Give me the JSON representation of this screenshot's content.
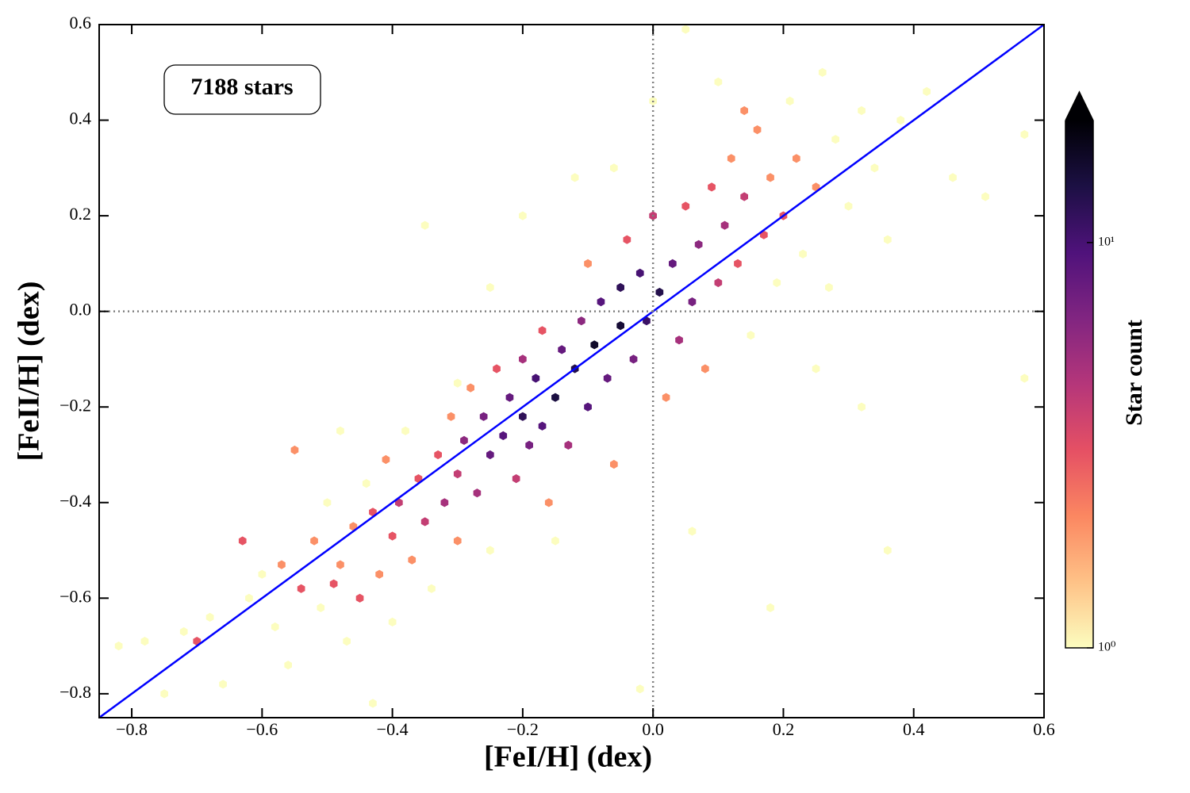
{
  "chart_data": {
    "type": "hexbin",
    "xlabel": "[FeI/H] (dex)",
    "ylabel": "[FeII/H] (dex)",
    "annotation": "7188 stars",
    "colorbar_label": "Star count",
    "colormap": "magma_r",
    "color_scale": "log",
    "clim": [
      1,
      20
    ],
    "colorbar_ticks": [
      {
        "value": 1,
        "label": "10⁰"
      },
      {
        "value": 10,
        "label": "10¹"
      }
    ],
    "xlim": [
      -0.85,
      0.6
    ],
    "ylim": [
      -0.85,
      0.6
    ],
    "xticks": [
      {
        "value": -0.8,
        "label": "−0.8"
      },
      {
        "value": -0.6,
        "label": "−0.6"
      },
      {
        "value": -0.4,
        "label": "−0.4"
      },
      {
        "value": -0.2,
        "label": "−0.2"
      },
      {
        "value": 0,
        "label": "0.0"
      },
      0.2,
      0.4,
      0.6
    ],
    "yticks": [
      {
        "value": -0.8,
        "label": "−0.8"
      },
      {
        "value": -0.6,
        "label": "−0.6"
      },
      {
        "value": -0.4,
        "label": "−0.4"
      },
      {
        "value": -0.2,
        "label": "−0.2"
      },
      {
        "value": 0,
        "label": "0.0"
      },
      0.2,
      0.4,
      0.6
    ],
    "identity_line_color": "#0000ff",
    "vlines": [
      0
    ],
    "hlines": [
      0
    ],
    "x": [
      -0.82,
      -0.78,
      -0.75,
      -0.72,
      -0.7,
      -0.68,
      -0.66,
      -0.63,
      -0.62,
      -0.6,
      -0.58,
      -0.57,
      -0.56,
      -0.55,
      -0.54,
      -0.52,
      -0.51,
      -0.5,
      -0.49,
      -0.48,
      -0.47,
      -0.46,
      -0.45,
      -0.44,
      -0.43,
      -0.42,
      -0.41,
      -0.4,
      -0.4,
      -0.39,
      -0.38,
      -0.37,
      -0.36,
      -0.35,
      -0.34,
      -0.33,
      -0.32,
      -0.31,
      -0.3,
      -0.3,
      -0.29,
      -0.28,
      -0.27,
      -0.26,
      -0.25,
      -0.25,
      -0.24,
      -0.23,
      -0.22,
      -0.21,
      -0.2,
      -0.2,
      -0.19,
      -0.18,
      -0.17,
      -0.17,
      -0.16,
      -0.15,
      -0.14,
      -0.13,
      -0.12,
      -0.11,
      -0.1,
      -0.1,
      -0.09,
      -0.08,
      -0.07,
      -0.06,
      -0.05,
      -0.05,
      -0.04,
      -0.03,
      -0.02,
      -0.01,
      0.0,
      0.01,
      0.02,
      0.03,
      0.04,
      0.05,
      0.06,
      0.07,
      0.08,
      0.09,
      0.1,
      0.11,
      0.12,
      0.13,
      0.14,
      0.15,
      0.16,
      0.17,
      0.18,
      0.19,
      0.2,
      0.21,
      0.22,
      0.23,
      0.25,
      0.26,
      0.27,
      0.28,
      0.3,
      0.32,
      0.34,
      0.36,
      0.38,
      0.42,
      0.46,
      0.51,
      0.57,
      0.57,
      0.05,
      -0.2,
      -0.35,
      0.06,
      0.18,
      0.36,
      -0.02,
      -0.43,
      -0.3,
      -0.48,
      0.0,
      -0.12,
      0.1,
      0.25,
      0.32,
      -0.15,
      -0.25,
      0.14,
      -0.06
    ],
    "y": [
      -0.7,
      -0.69,
      -0.8,
      -0.67,
      -0.69,
      -0.64,
      -0.78,
      -0.48,
      -0.6,
      -0.55,
      -0.66,
      -0.53,
      -0.74,
      -0.29,
      -0.58,
      -0.48,
      -0.62,
      -0.4,
      -0.57,
      -0.53,
      -0.69,
      -0.45,
      -0.6,
      -0.36,
      -0.42,
      -0.55,
      -0.31,
      -0.47,
      -0.65,
      -0.4,
      -0.25,
      -0.52,
      -0.35,
      -0.44,
      -0.58,
      -0.3,
      -0.4,
      -0.22,
      -0.34,
      -0.48,
      -0.27,
      -0.16,
      -0.38,
      -0.22,
      -0.3,
      -0.5,
      -0.12,
      -0.26,
      -0.18,
      -0.35,
      -0.1,
      -0.22,
      -0.28,
      -0.14,
      -0.04,
      -0.24,
      -0.4,
      -0.18,
      -0.08,
      -0.28,
      -0.12,
      -0.02,
      -0.2,
      0.1,
      -0.07,
      0.02,
      -0.14,
      -0.32,
      0.05,
      -0.03,
      0.15,
      -0.1,
      0.08,
      -0.02,
      0.2,
      0.04,
      -0.18,
      0.1,
      -0.06,
      0.22,
      0.02,
      0.14,
      -0.12,
      0.26,
      0.06,
      0.18,
      0.32,
      0.1,
      0.24,
      -0.05,
      0.38,
      0.16,
      0.28,
      0.06,
      0.2,
      0.44,
      0.32,
      0.12,
      0.26,
      0.5,
      0.05,
      0.36,
      0.22,
      0.42,
      0.3,
      0.15,
      0.4,
      0.46,
      0.28,
      0.24,
      0.37,
      -0.14,
      0.59,
      0.2,
      0.18,
      -0.46,
      -0.62,
      -0.5,
      -0.79,
      -0.82,
      -0.15,
      -0.25,
      0.44,
      0.28,
      0.48,
      -0.12,
      -0.2,
      -0.48,
      0.05,
      0.42,
      0.3
    ],
    "counts": [
      1,
      1,
      1,
      1,
      3,
      1,
      1,
      3,
      1,
      1,
      1,
      2,
      1,
      2,
      3,
      2,
      1,
      1,
      3,
      2,
      1,
      2,
      3,
      1,
      3,
      2,
      2,
      3,
      1,
      4,
      1,
      2,
      3,
      4,
      1,
      3,
      5,
      2,
      4,
      2,
      6,
      2,
      5,
      7,
      8,
      1,
      3,
      9,
      8,
      4,
      5,
      12,
      7,
      10,
      3,
      9,
      2,
      14,
      8,
      5,
      13,
      6,
      9,
      2,
      16,
      9,
      8,
      2,
      12,
      15,
      3,
      7,
      10,
      11,
      4,
      13,
      2,
      8,
      5,
      3,
      7,
      6,
      2,
      3,
      4,
      5,
      2,
      3,
      4,
      1,
      2,
      3,
      2,
      1,
      3,
      1,
      2,
      1,
      2,
      1,
      1,
      1,
      1,
      1,
      1,
      1,
      1,
      1,
      1,
      1,
      1,
      1,
      1,
      1,
      1,
      1,
      1,
      1,
      1,
      1,
      1,
      1,
      1,
      1,
      1,
      1,
      1,
      1,
      1,
      2,
      1
    ]
  }
}
